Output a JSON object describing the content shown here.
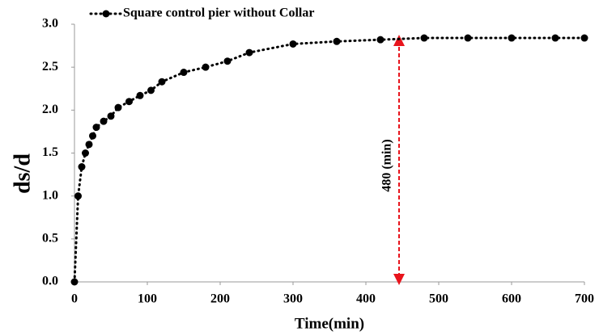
{
  "chart_data": {
    "type": "line",
    "legend_label": "Square control pier without Collar",
    "xlabel": "Time(min)",
    "ylabel": "ds/d",
    "annotation": "480 (min)",
    "x": [
      0,
      5,
      10,
      15,
      20,
      25,
      30,
      40,
      50,
      60,
      75,
      90,
      105,
      120,
      150,
      180,
      210,
      240,
      300,
      360,
      420,
      480,
      540,
      600,
      660,
      700
    ],
    "series": [
      {
        "name": "Square control pier without Collar",
        "color": "#000000",
        "values": [
          0,
          1.0,
          1.34,
          1.5,
          1.6,
          1.7,
          1.8,
          1.87,
          1.93,
          2.03,
          2.1,
          2.17,
          2.23,
          2.33,
          2.44,
          2.5,
          2.57,
          2.67,
          2.77,
          2.8,
          2.82,
          2.84,
          2.84,
          2.84,
          2.84,
          2.84
        ]
      }
    ],
    "xlim": [
      0,
      700
    ],
    "xticks": [
      0,
      100,
      200,
      300,
      400,
      500,
      600,
      700
    ],
    "ylim": [
      0,
      3.0
    ],
    "yticks": [
      {
        "value": 0,
        "label": "0.0"
      },
      0.5,
      {
        "value": 1,
        "label": "1.0"
      },
      1.5,
      {
        "value": 2,
        "label": "2.0"
      },
      2.5,
      {
        "value": 3,
        "label": "3.0"
      }
    ],
    "grid": false,
    "annotation_color": "#e8141c"
  }
}
